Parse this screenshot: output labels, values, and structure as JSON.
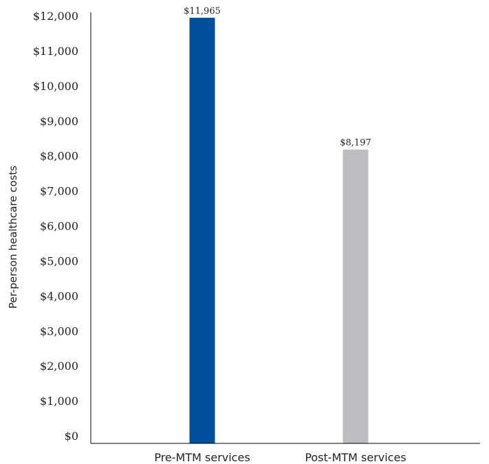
{
  "chart_data": {
    "type": "bar",
    "title": "",
    "xlabel": "",
    "ylabel": "Per-person healthcare costs",
    "categories": [
      "Pre-MTM services",
      "Post-MTM services"
    ],
    "values": [
      11965,
      8197
    ],
    "data_labels": [
      "$11,965",
      "$8,197"
    ],
    "colors": [
      "#00509b",
      "#bcbdc0"
    ],
    "ylim": [
      0,
      12000
    ],
    "yticks": [
      0,
      1000,
      2000,
      3000,
      4000,
      5000,
      6000,
      7000,
      8000,
      9000,
      10000,
      11000,
      12000
    ],
    "ytick_labels": [
      "$0",
      "$1,000",
      "$2,000",
      "$3,000",
      "$4,000",
      "$5,000",
      "$6,000",
      "$7,000",
      "$8,000",
      "$9,000",
      "$10,000",
      "$11,000",
      "$12,000"
    ],
    "grid": false,
    "legend": "none"
  }
}
